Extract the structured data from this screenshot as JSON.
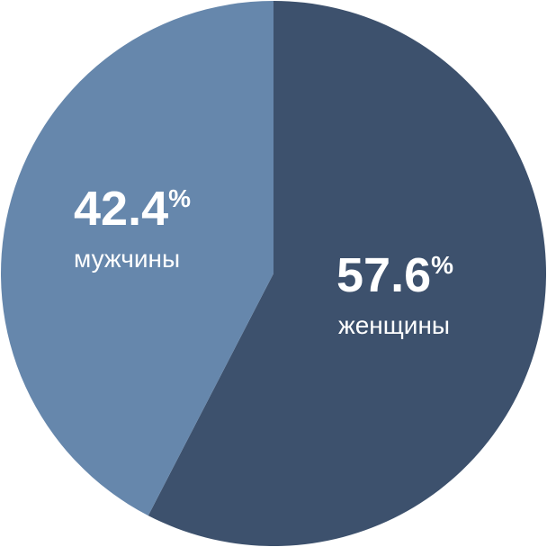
{
  "chart_data": {
    "type": "pie",
    "title": "",
    "start_angle_deg": 0,
    "direction": "clockwise",
    "slices": [
      {
        "label": "женщины",
        "value": 57.6,
        "value_text": "57.6",
        "percent_sign": "%",
        "color": "#3d516d"
      },
      {
        "label": "мужчины",
        "value": 42.4,
        "value_text": "42.4",
        "percent_sign": "%",
        "color": "#6687ac"
      }
    ]
  }
}
